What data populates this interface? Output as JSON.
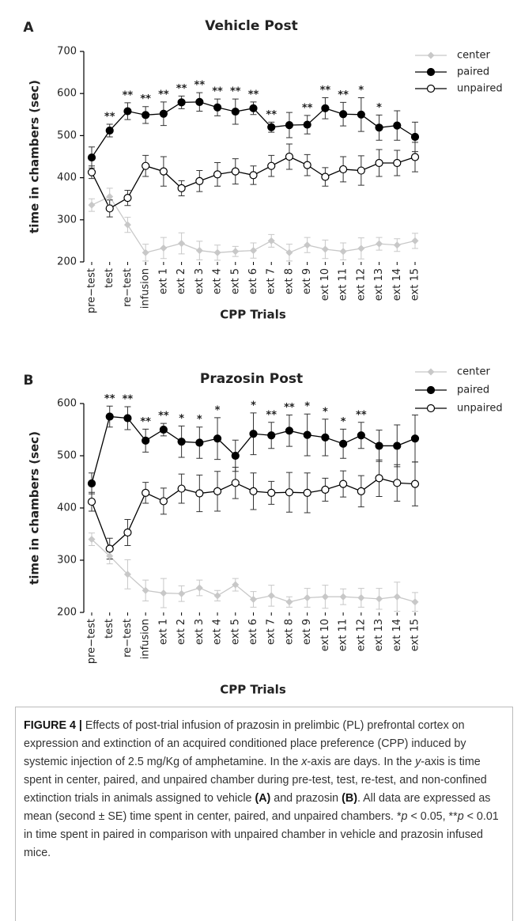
{
  "chart_data": [
    {
      "type": "line",
      "panel": "A",
      "title": "Vehicle Post",
      "xlabel": "CPP Trials",
      "ylabel": "time in chambers (sec)",
      "categories": [
        "pre−test",
        "test",
        "re−test",
        "infusion",
        "ext 1",
        "ext 2",
        "ext 3",
        "ext 4",
        "ext 5",
        "ext 6",
        "ext 7",
        "ext 8",
        "ext 9",
        "ext 10",
        "ext 11",
        "ext 12",
        "ext 13",
        "ext 14",
        "ext 15"
      ],
      "ylim": [
        200,
        700
      ],
      "yticks": [
        200,
        300,
        400,
        500,
        600,
        700
      ],
      "legend": "top-right",
      "series": [
        {
          "name": "center",
          "color": "#c8c8c8",
          "marker": "diamond",
          "values": [
            335,
            355,
            288,
            222,
            233,
            244,
            227,
            222,
            225,
            227,
            250,
            222,
            240,
            230,
            225,
            232,
            243,
            240,
            250
          ],
          "errors": [
            15,
            20,
            18,
            20,
            25,
            25,
            22,
            18,
            12,
            18,
            15,
            20,
            18,
            22,
            20,
            25,
            15,
            15,
            18
          ]
        },
        {
          "name": "paired",
          "color": "#000000",
          "marker": "filled-circle",
          "values": [
            448,
            512,
            558,
            549,
            552,
            579,
            580,
            567,
            557,
            565,
            520,
            525,
            526,
            565,
            551,
            550,
            519,
            524,
            497
          ],
          "errors": [
            25,
            15,
            20,
            20,
            28,
            15,
            22,
            20,
            30,
            15,
            12,
            30,
            22,
            25,
            28,
            40,
            30,
            35,
            35
          ]
        },
        {
          "name": "unpaired",
          "color": "#000000",
          "marker": "open-circle",
          "values": [
            413,
            327,
            352,
            428,
            415,
            375,
            392,
            408,
            415,
            406,
            428,
            450,
            430,
            402,
            420,
            417,
            435,
            435,
            449
          ],
          "errors": [
            15,
            20,
            18,
            25,
            35,
            18,
            25,
            28,
            30,
            22,
            25,
            30,
            25,
            22,
            30,
            35,
            32,
            30,
            35
          ]
        }
      ],
      "significance": [
        null,
        "**",
        "**",
        "**",
        "**",
        "**",
        "**",
        "**",
        "**",
        "**",
        "**",
        null,
        "**",
        "**",
        "**",
        "*",
        "*",
        null,
        null
      ]
    },
    {
      "type": "line",
      "panel": "B",
      "title": "Prazosin Post",
      "xlabel": "CPP Trials",
      "ylabel": "time in chambers (sec)",
      "categories": [
        "pre−test",
        "test",
        "re−test",
        "infusion",
        "ext 1",
        "ext 2",
        "ext 3",
        "ext 4",
        "ext 5",
        "ext 6",
        "ext 7",
        "ext 8",
        "ext 9",
        "ext 10",
        "ext 11",
        "ext 12",
        "ext 13",
        "ext 14",
        "ext 15"
      ],
      "ylim": [
        200,
        600
      ],
      "yticks": [
        200,
        300,
        400,
        500,
        600
      ],
      "legend": "top-right",
      "series": [
        {
          "name": "center",
          "color": "#c8c8c8",
          "marker": "diamond",
          "values": [
            340,
            308,
            273,
            242,
            237,
            236,
            247,
            232,
            253,
            225,
            232,
            220,
            228,
            230,
            230,
            228,
            226,
            230,
            220
          ],
          "errors": [
            12,
            15,
            28,
            20,
            28,
            15,
            15,
            10,
            12,
            15,
            20,
            10,
            18,
            22,
            15,
            18,
            20,
            28,
            18
          ]
        },
        {
          "name": "paired",
          "color": "#000000",
          "marker": "filled-circle",
          "values": [
            447,
            575,
            572,
            529,
            550,
            527,
            525,
            533,
            500,
            542,
            539,
            548,
            540,
            535,
            523,
            539,
            519,
            519,
            533
          ],
          "errors": [
            20,
            20,
            22,
            22,
            12,
            30,
            30,
            40,
            30,
            40,
            25,
            30,
            40,
            35,
            28,
            25,
            30,
            40,
            45
          ]
        },
        {
          "name": "unpaired",
          "color": "#000000",
          "marker": "open-circle",
          "values": [
            412,
            322,
            353,
            429,
            413,
            437,
            428,
            432,
            448,
            432,
            429,
            430,
            429,
            435,
            446,
            432,
            457,
            448,
            446
          ],
          "errors": [
            18,
            20,
            25,
            20,
            25,
            28,
            35,
            38,
            30,
            35,
            22,
            38,
            38,
            22,
            25,
            30,
            35,
            35,
            42
          ]
        }
      ],
      "significance": [
        null,
        "**",
        "**",
        "**",
        "**",
        "*",
        "*",
        "*",
        null,
        "*",
        "**",
        "**",
        "*",
        "*",
        "*",
        "**",
        null,
        null,
        null
      ]
    }
  ],
  "caption": [
    "FIGURE 4 |",
    " Effects of post-trial infusion of prazosin in prelimbic (PL) prefrontal cortex on expression and extinction of an acquired conditioned place preference (CPP) induced by systemic injection of 2.5 mg/Kg of amphetamine. In the ",
    "x",
    "-axis are days. In the ",
    "y",
    "-axis is time spent in center, paired, and unpaired chamber during pre-test, test, re-test, and non-confined extinction trials in animals assigned to vehicle ",
    "(A)",
    " and prazosin ",
    "(B)",
    ". All data are expressed as mean (second ± SE) time spent in center, paired, and unpaired chambers. *",
    "p",
    " < 0.05, **",
    "p",
    " < 0.01 in time spent in paired in comparison with unpaired chamber in vehicle and prazosin infused mice."
  ]
}
